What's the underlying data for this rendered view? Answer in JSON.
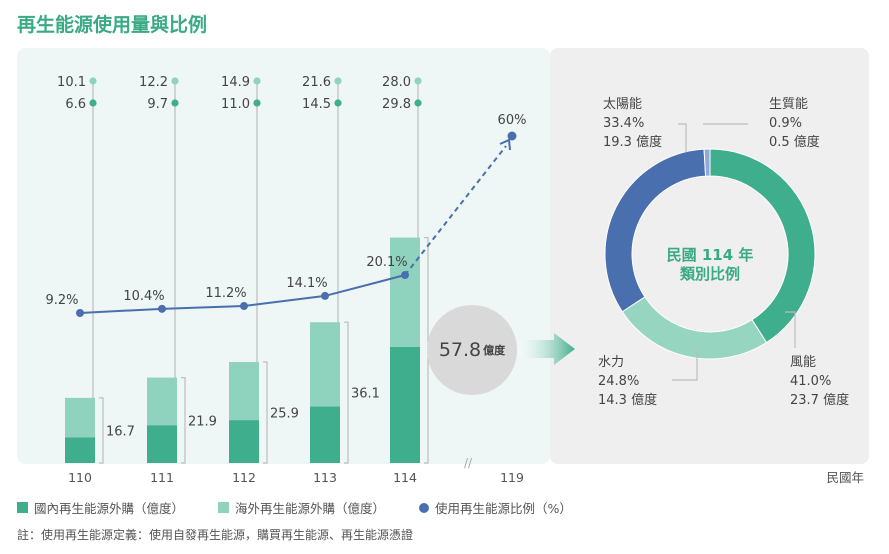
{
  "title": "再生能源使用量與比例",
  "chart_data": [
    {
      "type": "bar",
      "categories": [
        "110",
        "111",
        "112",
        "113",
        "114"
      ],
      "x_extra_tick": "119",
      "x_unit_label": "民國年",
      "series": [
        {
          "name": "國內再生能源外購（億度）",
          "color": "#3fae8c",
          "values": [
            6.6,
            9.7,
            11.0,
            14.5,
            29.8
          ]
        },
        {
          "name": "海外再生能源外購（億度）",
          "color": "#8fd3bf",
          "values": [
            10.1,
            12.2,
            14.9,
            21.6,
            28.0
          ]
        }
      ],
      "totals": [
        "16.7",
        "21.9",
        "25.9",
        "36.1",
        "57.8"
      ],
      "domestic_labels": [
        "6.6",
        "9.7",
        "11.0",
        "14.5",
        "29.8"
      ],
      "overseas_labels": [
        "10.1",
        "12.2",
        "14.9",
        "21.6",
        "28.0"
      ],
      "ratio_series": {
        "name": "使用再生能源比例（%）",
        "color": "#4a6fae",
        "x": [
          "110",
          "111",
          "112",
          "113",
          "114"
        ],
        "values": [
          9.2,
          10.4,
          11.2,
          14.1,
          20.1
        ],
        "labels": [
          "9.2%",
          "10.4%",
          "11.2%",
          "14.1%",
          "20.1%"
        ],
        "target": {
          "x": "119",
          "value": 60,
          "label": "60%"
        }
      },
      "total_highlight": {
        "value": "57.8",
        "unit": "億度"
      },
      "ylim_bar": [
        0,
        60
      ],
      "ylim_ratio": [
        0,
        65
      ]
    },
    {
      "type": "pie",
      "center_title_line1": "民國 114 年",
      "center_title_line2": "類別比例",
      "slices": [
        {
          "name": "風能",
          "pct": 41.0,
          "pct_label": "41.0%",
          "amount": "23.7 億度",
          "color": "#3fae8c"
        },
        {
          "name": "水力",
          "pct": 24.8,
          "pct_label": "24.8%",
          "amount": "14.3 億度",
          "color": "#96d6c1"
        },
        {
          "name": "太陽能",
          "pct": 33.4,
          "pct_label": "33.4%",
          "amount": "19.3 億度",
          "color": "#4a6fae"
        },
        {
          "name": "生質能",
          "pct": 0.9,
          "pct_label": "0.9%",
          "amount": "0.5 億度",
          "color": "#8fa9d8"
        }
      ]
    }
  ],
  "legend": {
    "domestic": "國內再生能源外購（億度）",
    "overseas": "海外再生能源外購（億度）",
    "ratio": "使用再生能源比例（%）"
  },
  "note": "註：使用再生能源定義：使用自發再生能源，購買再生能源、再生能源憑證",
  "colors": {
    "accent": "#3aaa85",
    "panel_left": "#eef7f5",
    "panel_right": "#efefef"
  }
}
